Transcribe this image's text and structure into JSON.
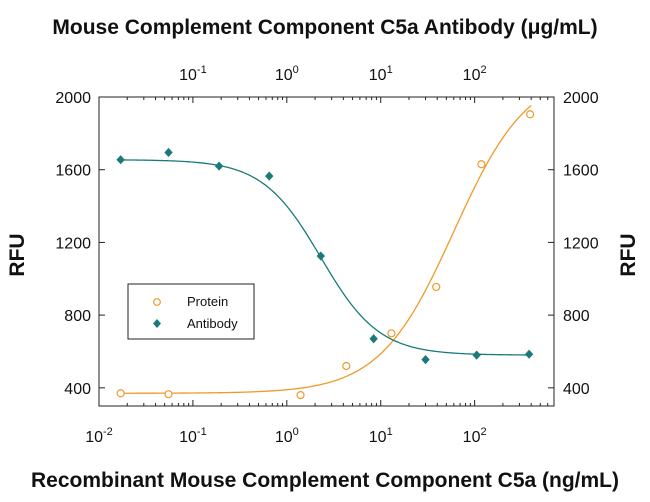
{
  "chart_data": {
    "type": "scatter",
    "title": "Mouse Complement Component C5a Antibody (μg/mL)",
    "xlabel": "Recombinant Mouse Complement Component C5a (ng/mL)",
    "ylabel": "RFU",
    "ylabel_right": "RFU",
    "x_scale": "log",
    "xlim": [
      0.01,
      700
    ],
    "ylim": [
      300,
      2000
    ],
    "grid": false,
    "legend_position": "middle-left",
    "y_ticks": [
      400,
      800,
      1200,
      1600,
      2000
    ],
    "y_tick_labels": [
      "400",
      "800",
      "1200",
      "1600",
      "2000"
    ],
    "x_bottom_ticks": [
      {
        "value": 0.01,
        "base": "10",
        "exp": "-2"
      },
      {
        "value": 0.1,
        "base": "10",
        "exp": "-1"
      },
      {
        "value": 1,
        "base": "10",
        "exp": "0"
      },
      {
        "value": 10,
        "base": "10",
        "exp": "1"
      },
      {
        "value": 100,
        "base": "10",
        "exp": "2"
      }
    ],
    "x_top_ticks": [
      {
        "value": 0.1,
        "base": "10",
        "exp": "-1"
      },
      {
        "value": 1,
        "base": "10",
        "exp": "0"
      },
      {
        "value": 10,
        "base": "10",
        "exp": "1"
      },
      {
        "value": 100,
        "base": "10",
        "exp": "2"
      }
    ],
    "series": [
      {
        "name": "Protein",
        "axis": "bottom",
        "color": "#ee9a2a",
        "marker": "open-circle",
        "x": [
          0.017,
          0.055,
          1.4,
          4.3,
          13,
          39,
          118,
          390
        ],
        "y": [
          370,
          365,
          360,
          520,
          700,
          955,
          1630,
          1905
        ]
      },
      {
        "name": "Antibody",
        "axis": "top",
        "color": "#1a7a7a",
        "marker": "filled-diamond",
        "x": [
          0.017,
          0.055,
          0.19,
          0.65,
          2.3,
          8.4,
          30,
          105,
          380
        ],
        "y": [
          1655,
          1695,
          1620,
          1565,
          1125,
          670,
          555,
          580,
          585
        ]
      }
    ]
  }
}
